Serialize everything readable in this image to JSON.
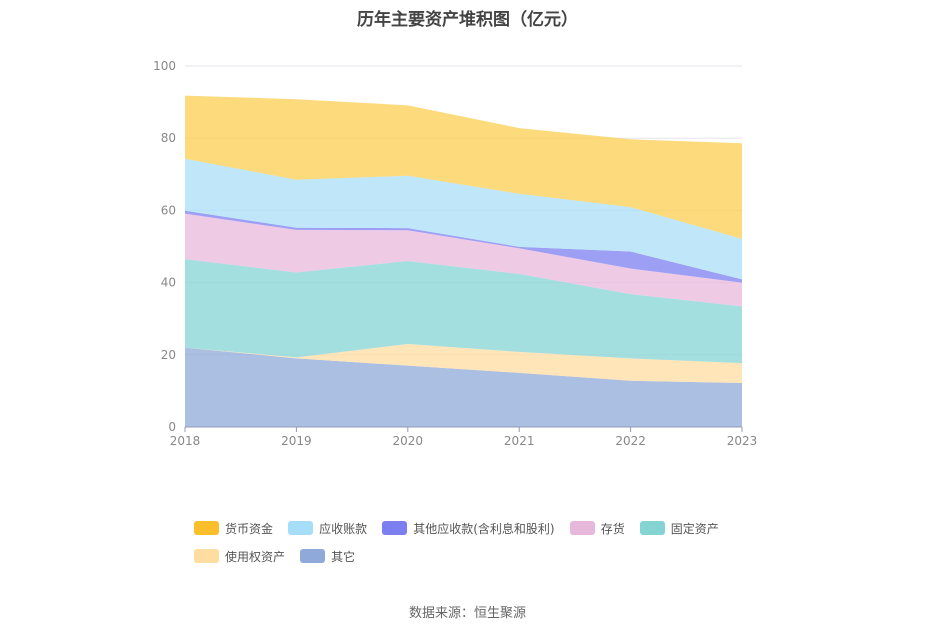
{
  "chart_data": {
    "type": "area",
    "stacked": true,
    "title": "历年主要资产堆积图（亿元）",
    "categories": [
      "2018",
      "2019",
      "2020",
      "2021",
      "2022",
      "2023"
    ],
    "ylim": [
      0,
      100
    ],
    "yticks": [
      "0",
      "20",
      "40",
      "60",
      "80",
      "100"
    ],
    "series": [
      {
        "name": "其它",
        "color": "#8fa9d8",
        "values": [
          22.0,
          19.0,
          17.0,
          15.0,
          12.8,
          12.2
        ]
      },
      {
        "name": "使用权资产",
        "color": "#ffdca0",
        "values": [
          0.0,
          0.3,
          6.0,
          5.8,
          6.2,
          5.5
        ]
      },
      {
        "name": "固定资产",
        "color": "#85d4d4",
        "values": [
          24.5,
          23.5,
          23.0,
          21.6,
          17.8,
          15.7
        ]
      },
      {
        "name": "存货",
        "color": "#e8b8dc",
        "values": [
          12.6,
          11.8,
          8.5,
          7.1,
          7.1,
          6.6
        ]
      },
      {
        "name": "其他应收款(含利息和股利)",
        "color": "#7b7ff0",
        "values": [
          0.8,
          0.6,
          0.6,
          0.4,
          4.7,
          0.9
        ]
      },
      {
        "name": "应收账款",
        "color": "#a9dff7",
        "values": [
          14.4,
          13.3,
          14.5,
          14.7,
          12.3,
          11.2
        ]
      },
      {
        "name": "货币资金",
        "color": "#fccd4f",
        "values": [
          17.5,
          22.3,
          19.5,
          18.2,
          18.8,
          26.5
        ]
      }
    ]
  },
  "legend": [
    {
      "label": "货币资金",
      "color": "#fbbf2c"
    },
    {
      "label": "应收账款",
      "color": "#a6defa"
    },
    {
      "label": "其他应收款(含利息和股利)",
      "color": "#7b7ff0"
    },
    {
      "label": "存货",
      "color": "#e8b8dc"
    },
    {
      "label": "固定资产",
      "color": "#85d4d4"
    },
    {
      "label": "使用权资产",
      "color": "#ffdca0"
    },
    {
      "label": "其它",
      "color": "#8fa9d8"
    }
  ],
  "source": "数据来源：恒生聚源"
}
